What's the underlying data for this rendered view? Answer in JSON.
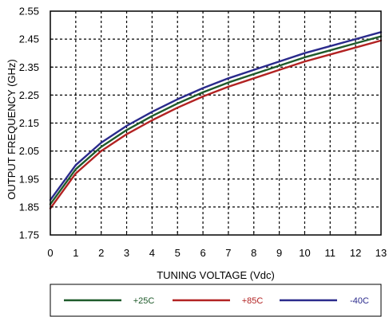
{
  "chart_data": {
    "type": "line",
    "title": "",
    "xlabel": "TUNING VOLTAGE (Vdc)",
    "ylabel": "OUTPUT FREQUENCY (GHz)",
    "xlim": [
      0,
      13
    ],
    "ylim": [
      1.75,
      2.55
    ],
    "x_ticks": [
      0,
      1,
      2,
      3,
      4,
      5,
      6,
      7,
      8,
      9,
      10,
      11,
      12,
      13
    ],
    "y_ticks": [
      1.75,
      1.85,
      1.95,
      2.05,
      2.15,
      2.25,
      2.35,
      2.45,
      2.55
    ],
    "grid": true,
    "legend_position": "bottom",
    "x": [
      0,
      1,
      2,
      3,
      4,
      5,
      6,
      7,
      8,
      9,
      10,
      11,
      12,
      13
    ],
    "series": [
      {
        "name": "+25C",
        "color": "#1e5a2a",
        "values": [
          1.86,
          1.985,
          2.065,
          2.125,
          2.175,
          2.22,
          2.26,
          2.295,
          2.325,
          2.355,
          2.385,
          2.41,
          2.435,
          2.46
        ]
      },
      {
        "name": "+85C",
        "color": "#b22222",
        "values": [
          1.845,
          1.97,
          2.05,
          2.11,
          2.16,
          2.205,
          2.245,
          2.28,
          2.31,
          2.34,
          2.37,
          2.395,
          2.42,
          2.445
        ]
      },
      {
        "name": "-40C",
        "color": "#2a2a8c",
        "values": [
          1.875,
          2.0,
          2.08,
          2.14,
          2.19,
          2.235,
          2.275,
          2.31,
          2.34,
          2.37,
          2.4,
          2.425,
          2.45,
          2.475
        ]
      }
    ]
  }
}
